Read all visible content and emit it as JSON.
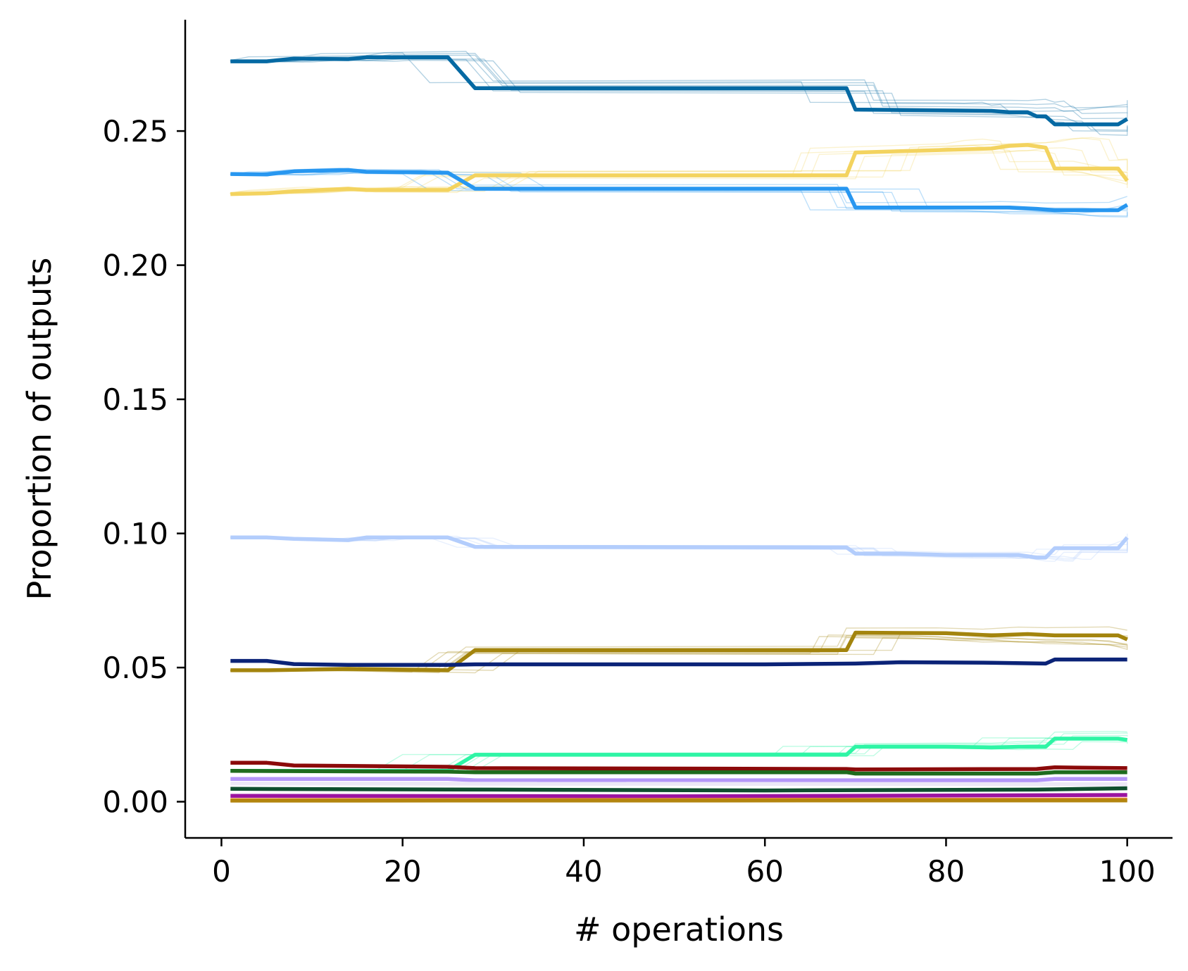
{
  "chart_data": {
    "type": "line",
    "title": "",
    "xlabel": "# operations",
    "ylabel": "Proportion of outputs",
    "xlim": [
      -4,
      105
    ],
    "ylim": [
      -0.0135,
      0.2915
    ],
    "xticks": [
      0,
      20,
      40,
      60,
      80,
      100
    ],
    "xtick_labels": [
      "0",
      "20",
      "40",
      "60",
      "80",
      "100"
    ],
    "yticks": [
      0.0,
      0.05,
      0.1,
      0.15,
      0.2,
      0.25
    ],
    "ytick_labels": [
      "0.00",
      "0.05",
      "0.10",
      "0.15",
      "0.20",
      "0.25"
    ],
    "grid": false,
    "legend": "none",
    "background_traces_note_color_alpha": 0.3,
    "series": [
      {
        "color": "#0569a3",
        "points": [
          [
            1,
            0.276
          ],
          [
            5,
            0.276
          ],
          [
            8,
            0.277
          ],
          [
            14,
            0.2768
          ],
          [
            16,
            0.2775
          ],
          [
            25,
            0.2775
          ],
          [
            28,
            0.266
          ],
          [
            69,
            0.266
          ],
          [
            70,
            0.258
          ],
          [
            85,
            0.2575
          ],
          [
            87,
            0.257
          ],
          [
            89,
            0.257
          ],
          [
            90,
            0.2555
          ],
          [
            91,
            0.2555
          ],
          [
            92,
            0.2525
          ],
          [
            99,
            0.2525
          ],
          [
            100,
            0.2545
          ]
        ]
      },
      {
        "color": "#f3d35f",
        "points": [
          [
            1,
            0.2265
          ],
          [
            5,
            0.2268
          ],
          [
            8,
            0.2275
          ],
          [
            14,
            0.2285
          ],
          [
            16,
            0.228
          ],
          [
            25,
            0.228
          ],
          [
            28,
            0.2335
          ],
          [
            69,
            0.2335
          ],
          [
            70,
            0.242
          ],
          [
            85,
            0.2435
          ],
          [
            87,
            0.2445
          ],
          [
            89,
            0.2448
          ],
          [
            91,
            0.2438
          ],
          [
            92,
            0.236
          ],
          [
            99,
            0.236
          ],
          [
            100,
            0.2315
          ]
        ]
      },
      {
        "color": "#2897f0",
        "points": [
          [
            1,
            0.234
          ],
          [
            5,
            0.2338
          ],
          [
            8,
            0.235
          ],
          [
            14,
            0.2355
          ],
          [
            16,
            0.2348
          ],
          [
            25,
            0.2345
          ],
          [
            28,
            0.2285
          ],
          [
            69,
            0.2285
          ],
          [
            70,
            0.2215
          ],
          [
            85,
            0.2215
          ],
          [
            87,
            0.2215
          ],
          [
            90,
            0.221
          ],
          [
            92,
            0.2205
          ],
          [
            99,
            0.2205
          ],
          [
            100,
            0.2225
          ]
        ]
      },
      {
        "color": "#b3cdfc",
        "points": [
          [
            1,
            0.0985
          ],
          [
            5,
            0.0985
          ],
          [
            8,
            0.098
          ],
          [
            14,
            0.0975
          ],
          [
            16,
            0.0985
          ],
          [
            25,
            0.0985
          ],
          [
            28,
            0.095
          ],
          [
            69,
            0.0948
          ],
          [
            70,
            0.0925
          ],
          [
            75,
            0.0925
          ],
          [
            80,
            0.092
          ],
          [
            88,
            0.092
          ],
          [
            90,
            0.091
          ],
          [
            91,
            0.091
          ],
          [
            92,
            0.0945
          ],
          [
            99,
            0.0945
          ],
          [
            100,
            0.0985
          ]
        ]
      },
      {
        "color": "#a3840d",
        "points": [
          [
            1,
            0.049
          ],
          [
            5,
            0.049
          ],
          [
            14,
            0.0495
          ],
          [
            25,
            0.049
          ],
          [
            28,
            0.0565
          ],
          [
            69,
            0.0565
          ],
          [
            70,
            0.063
          ],
          [
            80,
            0.0628
          ],
          [
            85,
            0.062
          ],
          [
            89,
            0.0625
          ],
          [
            92,
            0.062
          ],
          [
            99,
            0.062
          ],
          [
            100,
            0.0605
          ]
        ]
      },
      {
        "color": "#0b2377",
        "points": [
          [
            1,
            0.0525
          ],
          [
            5,
            0.0525
          ],
          [
            8,
            0.0513
          ],
          [
            14,
            0.051
          ],
          [
            25,
            0.051
          ],
          [
            28,
            0.0512
          ],
          [
            60,
            0.0512
          ],
          [
            70,
            0.0515
          ],
          [
            75,
            0.052
          ],
          [
            85,
            0.0518
          ],
          [
            91,
            0.0515
          ],
          [
            92,
            0.053
          ],
          [
            100,
            0.053
          ]
        ]
      },
      {
        "color": "#2ef5a5",
        "points": [
          [
            1,
            0.0115
          ],
          [
            25,
            0.0115
          ],
          [
            28,
            0.0175
          ],
          [
            69,
            0.0175
          ],
          [
            70,
            0.0205
          ],
          [
            80,
            0.0205
          ],
          [
            85,
            0.0202
          ],
          [
            88,
            0.0205
          ],
          [
            91,
            0.0205
          ],
          [
            92,
            0.0235
          ],
          [
            99,
            0.0235
          ],
          [
            100,
            0.023
          ]
        ]
      },
      {
        "color": "#8b0a0a",
        "points": [
          [
            1,
            0.0145
          ],
          [
            5,
            0.0145
          ],
          [
            8,
            0.0135
          ],
          [
            25,
            0.013
          ],
          [
            28,
            0.0125
          ],
          [
            69,
            0.0122
          ],
          [
            70,
            0.012
          ],
          [
            90,
            0.0122
          ],
          [
            92,
            0.0128
          ],
          [
            100,
            0.0125
          ]
        ]
      },
      {
        "color": "#1e6b1e",
        "points": [
          [
            1,
            0.0115
          ],
          [
            25,
            0.0112
          ],
          [
            28,
            0.011
          ],
          [
            69,
            0.011
          ],
          [
            70,
            0.0105
          ],
          [
            90,
            0.0105
          ],
          [
            92,
            0.011
          ],
          [
            100,
            0.011
          ]
        ]
      },
      {
        "color": "#b496f8",
        "points": [
          [
            1,
            0.0085
          ],
          [
            25,
            0.0085
          ],
          [
            28,
            0.008
          ],
          [
            90,
            0.008
          ],
          [
            92,
            0.0085
          ],
          [
            100,
            0.0085
          ]
        ]
      },
      {
        "color": "#ece8f6",
        "points": [
          [
            1,
            0.0068
          ],
          [
            100,
            0.0065
          ]
        ]
      },
      {
        "color": "#0e4e2e",
        "points": [
          [
            1,
            0.0048
          ],
          [
            30,
            0.0045
          ],
          [
            60,
            0.0042
          ],
          [
            90,
            0.0045
          ],
          [
            100,
            0.005
          ]
        ]
      },
      {
        "color": "#9b14a0",
        "points": [
          [
            1,
            0.0022
          ],
          [
            50,
            0.002
          ],
          [
            100,
            0.0025
          ]
        ]
      },
      {
        "color": "#f08a48",
        "points": [
          [
            1,
            0.0006
          ],
          [
            100,
            0.0008
          ]
        ]
      },
      {
        "color": "#b3850f",
        "points": [
          [
            1,
            0.0004
          ],
          [
            100,
            0.0005
          ]
        ]
      }
    ]
  }
}
